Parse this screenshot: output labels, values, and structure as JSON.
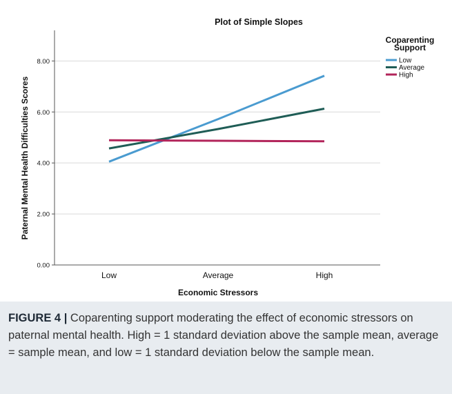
{
  "chart_data": {
    "type": "line",
    "title": "Plot of Simple Slopes",
    "xlabel": "Economic Stressors",
    "ylabel": "Paternal Mental Health Difficulties Scores",
    "categories": [
      "Low",
      "Average",
      "High"
    ],
    "ylim": [
      0,
      9.2
    ],
    "yticks": [
      "0.00",
      "2.00",
      "4.00",
      "6.00",
      "8.00"
    ],
    "grid": true,
    "legend_title": "Coparenting Support",
    "legend_position": "top-right",
    "series": [
      {
        "name": "Low",
        "color": "#4a9bd0",
        "values": [
          4.05,
          5.72,
          7.42
        ]
      },
      {
        "name": "Average",
        "color": "#1f5d56",
        "values": [
          4.57,
          5.33,
          6.13
        ]
      },
      {
        "name": "High",
        "color": "#b2245a",
        "values": [
          4.89,
          4.87,
          4.85
        ]
      }
    ]
  },
  "caption": {
    "label": "FIGURE 4",
    "separator": "|",
    "text": "Coparenting support moderating the effect of economic stressors on paternal mental health. High = 1 standard deviation above the sample mean, average = sample mean, and low = 1 standard deviation below the sample mean."
  }
}
